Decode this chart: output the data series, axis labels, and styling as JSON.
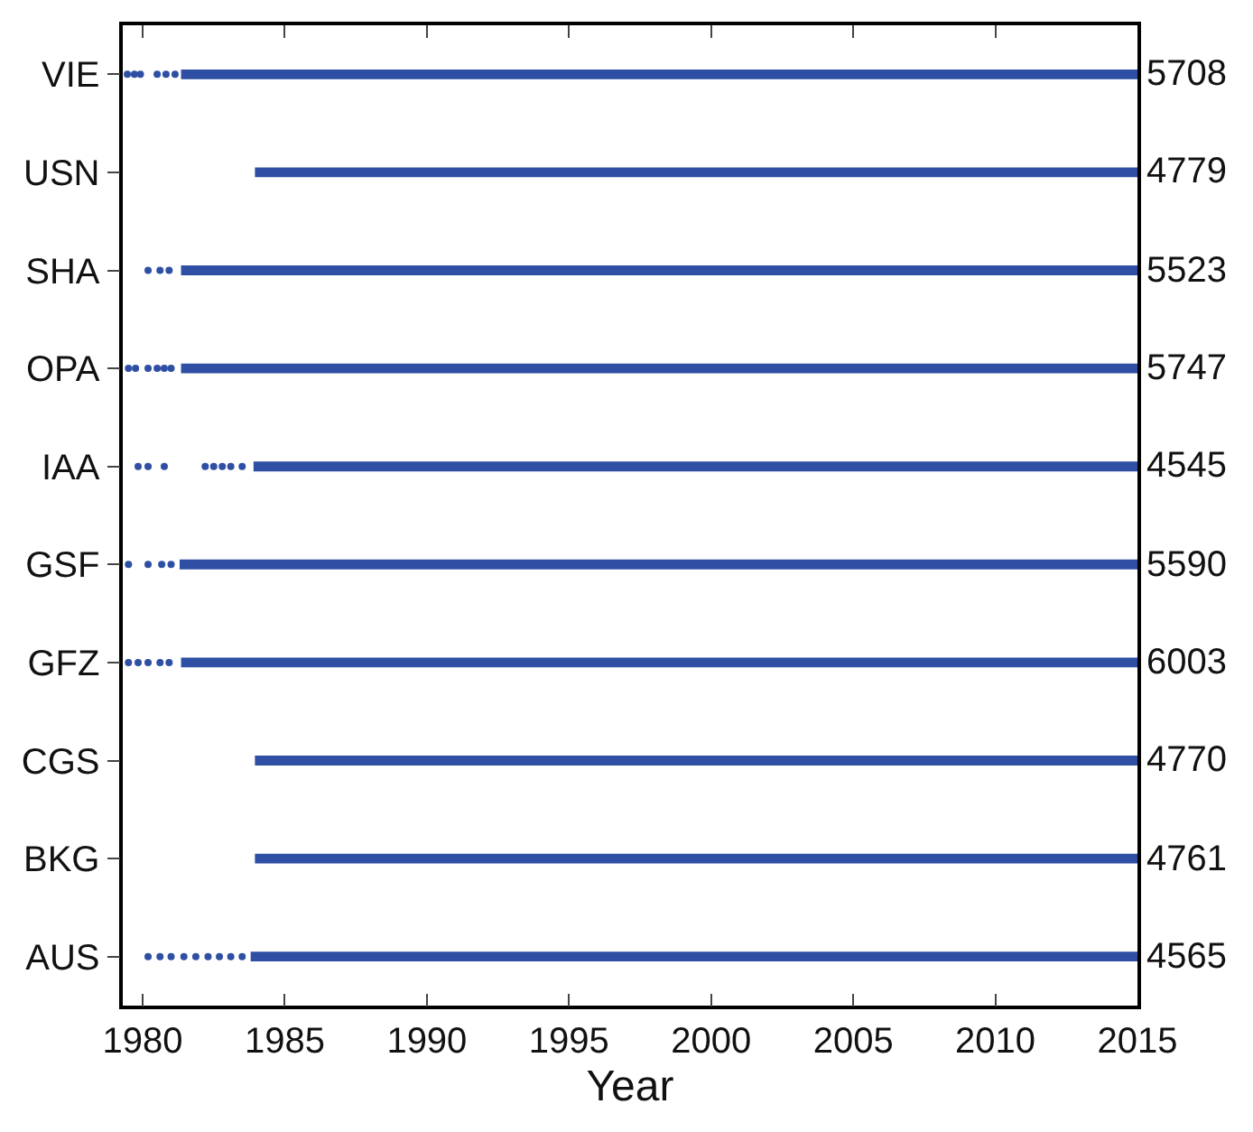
{
  "chart_data": {
    "type": "bar",
    "orientation": "horizontal",
    "xlabel": "Year",
    "categories": [
      "VIE",
      "USN",
      "SHA",
      "OPA",
      "IAA",
      "GSF",
      "GFZ",
      "CGS",
      "BKG",
      "AUS"
    ],
    "xlim": [
      1979.3,
      2015
    ],
    "xticks": [
      1980,
      1985,
      1990,
      1995,
      2000,
      2005,
      2010,
      2015
    ],
    "annotations": [
      "5708",
      "4779",
      "5523",
      "5747",
      "4545",
      "5590",
      "6003",
      "4770",
      "4761",
      "4565"
    ],
    "series": [
      {
        "color": "#2e4fa3",
        "base": [
          1981.35,
          1983.95,
          1981.35,
          1981.35,
          1983.9,
          1981.3,
          1981.35,
          1983.95,
          1983.95,
          1983.8
        ],
        "values": [
          33.65,
          31.05,
          33.65,
          33.65,
          31.1,
          33.7,
          33.65,
          31.05,
          31.05,
          31.2
        ]
      },
      {
        "type": "scatter",
        "marker": "circle",
        "color": "#2e4fa3",
        "values": [
          1979.46,
          null,
          1980.19,
          1979.5,
          1979.84,
          1979.5,
          1979.5,
          null,
          null,
          1980.19
        ]
      },
      {
        "type": "scatter",
        "marker": "circle",
        "color": "#2e4fa3",
        "values": [
          1979.71,
          null,
          1980.61,
          1979.75,
          1980.19,
          1980.19,
          1979.84,
          null,
          null,
          1980.61
        ]
      },
      {
        "type": "scatter",
        "marker": "circle",
        "color": "#2e4fa3",
        "values": [
          1979.92,
          null,
          1980.93,
          1980.19,
          1980.76,
          1980.67,
          1980.19,
          null,
          null,
          1981.0
        ]
      },
      {
        "type": "scatter",
        "marker": "circle",
        "color": "#2e4fa3",
        "values": [
          1980.51,
          null,
          null,
          1980.51,
          1982.2,
          1981.0,
          1980.61,
          null,
          null,
          1981.45
        ]
      },
      {
        "type": "scatter",
        "marker": "circle",
        "color": "#2e4fa3",
        "values": [
          1980.82,
          null,
          null,
          1980.76,
          1982.5,
          null,
          1980.93,
          null,
          null,
          1981.87
        ]
      },
      {
        "type": "scatter",
        "marker": "circle",
        "color": "#2e4fa3",
        "values": [
          1981.14,
          null,
          null,
          1981.0,
          1982.8,
          null,
          null,
          null,
          null,
          1982.3
        ]
      },
      {
        "type": "scatter",
        "marker": "circle",
        "color": "#2e4fa3",
        "values": [
          null,
          null,
          null,
          null,
          1983.1,
          null,
          null,
          null,
          null,
          1982.7
        ]
      },
      {
        "type": "scatter",
        "marker": "circle",
        "color": "#2e4fa3",
        "values": [
          null,
          null,
          null,
          null,
          1983.5,
          null,
          null,
          null,
          null,
          1983.1
        ]
      },
      {
        "type": "scatter",
        "marker": "circle",
        "color": "#2e4fa3",
        "values": [
          null,
          null,
          null,
          null,
          null,
          null,
          null,
          null,
          null,
          1983.5
        ]
      }
    ]
  }
}
